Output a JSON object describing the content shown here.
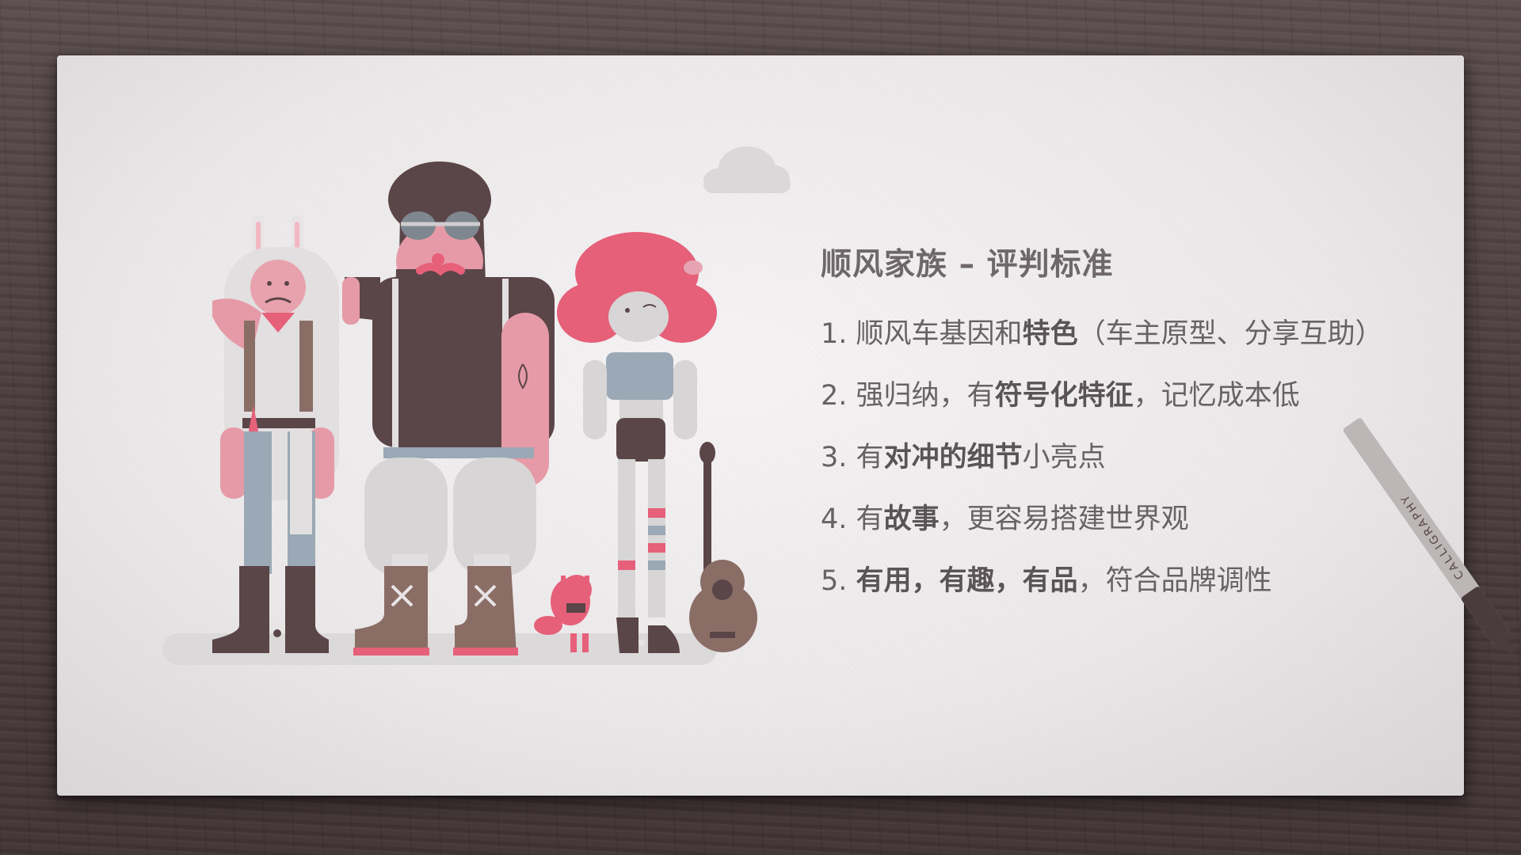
{
  "slide": {
    "title": "顺风家族 – 评判标准",
    "items": [
      {
        "num": "1.",
        "parts": [
          {
            "t": "顺风车基因和",
            "b": false
          },
          {
            "t": "特色",
            "b": true
          },
          {
            "t": "（车主原型、分享互助）",
            "b": false
          }
        ]
      },
      {
        "num": "2.",
        "parts": [
          {
            "t": "强归纳，有",
            "b": false
          },
          {
            "t": "符号化特征",
            "b": true
          },
          {
            "t": "，记忆成本低",
            "b": false
          }
        ]
      },
      {
        "num": "3.",
        "parts": [
          {
            "t": "有",
            "b": false
          },
          {
            "t": "对冲的细节",
            "b": true
          },
          {
            "t": "小亮点",
            "b": false
          }
        ]
      },
      {
        "num": "4.",
        "parts": [
          {
            "t": "有",
            "b": false
          },
          {
            "t": "故事",
            "b": true
          },
          {
            "t": "，更容易搭建世界观",
            "b": false
          }
        ]
      },
      {
        "num": "5.",
        "parts": [
          {
            "t": "有用，有趣，有品",
            "b": true
          },
          {
            "t": "，符合品牌调性",
            "b": false
          }
        ]
      }
    ]
  },
  "pen_label": "CALLIGRAPHY",
  "colors": {
    "pink": "#e6607a",
    "dark": "#5a4548",
    "skin": "#e69aa7",
    "blue_grey": "#9aa9b5",
    "light_grey": "#d8d5d6",
    "brown": "#8a6e66"
  }
}
